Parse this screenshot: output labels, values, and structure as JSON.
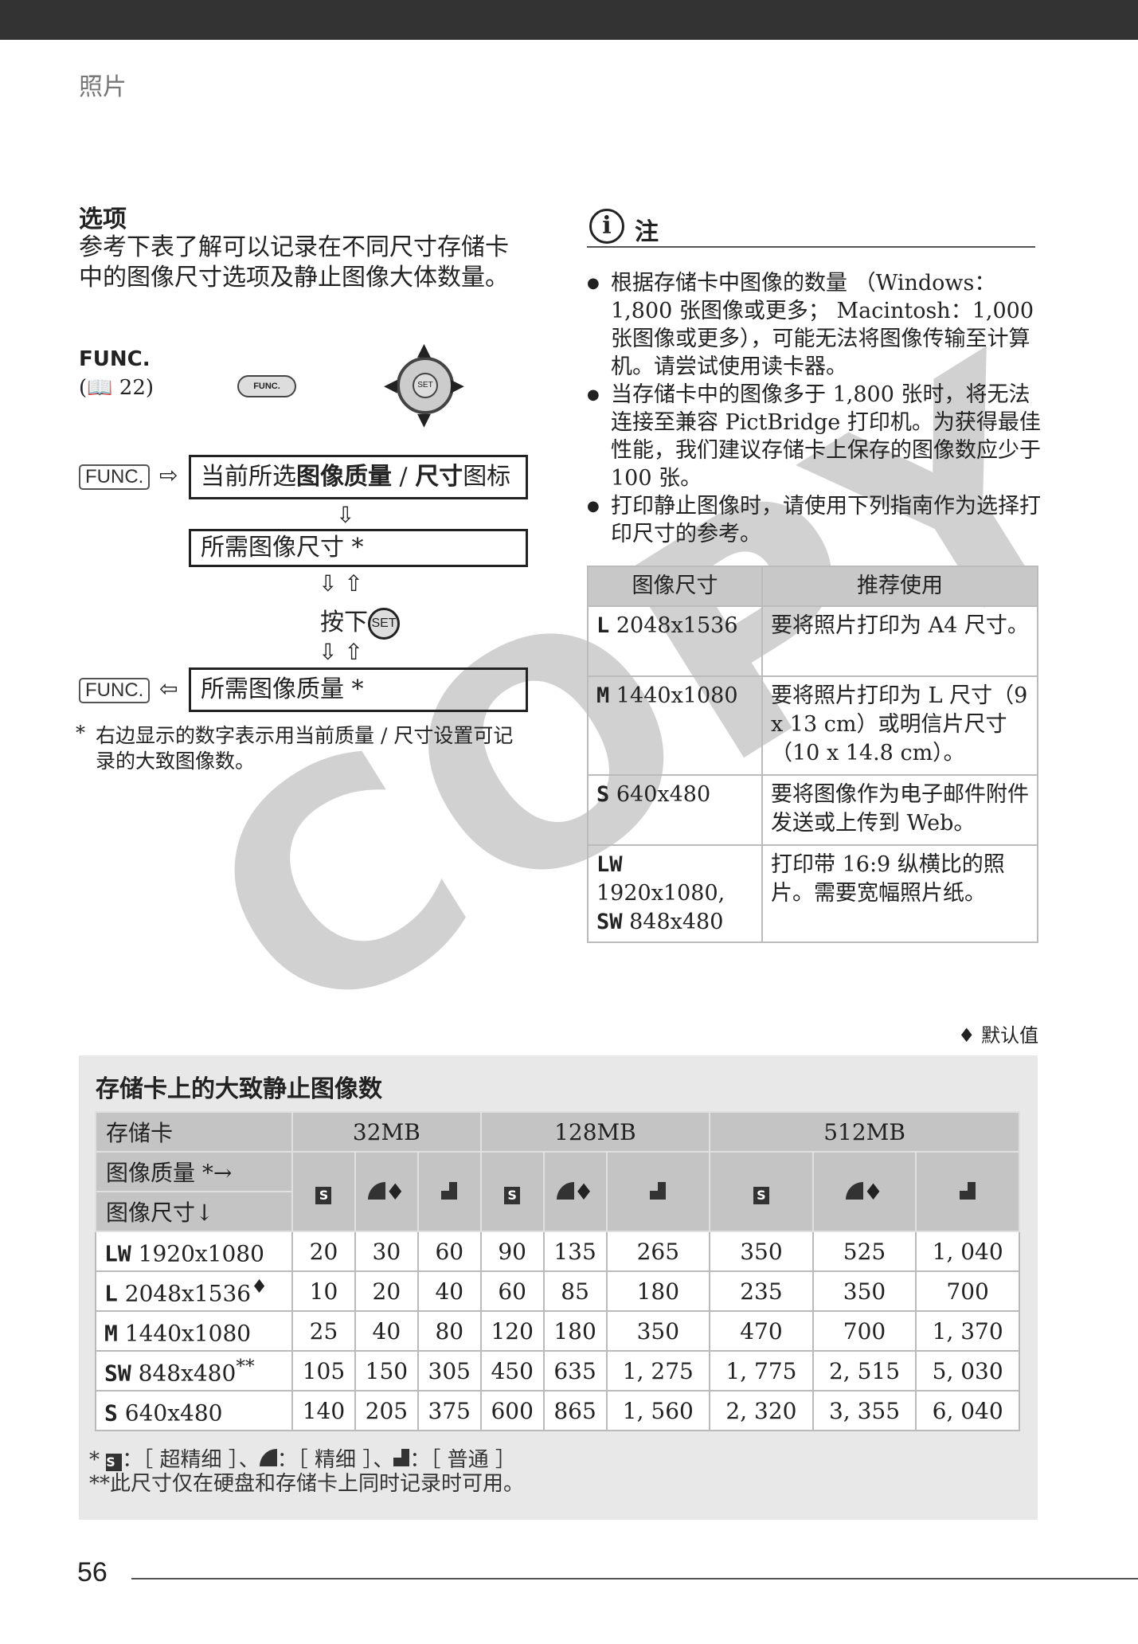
{
  "header": {
    "section": "照片"
  },
  "options": {
    "title": "选项",
    "intro": "参考下表了解可以记录在不同尺寸存储卡中的图像尺寸选项及静止图像大体数量。",
    "func_label": "FUNC.",
    "func_ref": "22",
    "func_button": "FUNC.",
    "set_label": "SET",
    "steps": {
      "func": "FUNC.",
      "step1_pre": "当前所选",
      "step1_bold1": "图像质量",
      "step1_sep": " / ",
      "step1_bold2": "尺寸",
      "step1_post": "图标",
      "step2": "所需图像尺寸 *",
      "press": "按下",
      "step3": "所需图像质量 *"
    },
    "footnote": "右边显示的数字表示用当前质量 / 尺寸设置可记录的大致图像数。"
  },
  "notes": {
    "title": "注",
    "items": [
      "根据存储卡中图像的数量 （Windows：1,800 张图像或更多； Macintosh：1,000 张图像或更多），可能无法将图像传输至计算机。请尝试使用读卡器。",
      "当存储卡中的图像多于 1,800 张时，将无法连接至兼容 PictBridge 打印机。为获得最佳性能，我们建议存储卡上保存的图像数应少于 100 张。",
      "打印静止图像时，请使用下列指南作为选择打印尺寸的参考。"
    ],
    "table": {
      "headers": [
        "图像尺寸",
        "推荐使用"
      ],
      "rows": [
        {
          "code": "L",
          "size": "2048x1536",
          "use": "要将照片打印为 A4 尺寸。"
        },
        {
          "code": "M",
          "size": "1440x1080",
          "use": "要将照片打印为 L 尺寸（9 x 13 cm）或明信片尺寸 （10 x 14.8 cm）。"
        },
        {
          "code": "S",
          "size": "640x480",
          "use": "要将图像作为电子邮件附件发送或上传到 Web。"
        },
        {
          "code": "LW",
          "size": "1920x1080,",
          "code2": "SW",
          "size2": "848x480",
          "use": "打印带 16:9 纵横比的照片。需要宽幅照片纸。"
        }
      ]
    }
  },
  "default_note": "默认值",
  "counts": {
    "title": "存储卡上的大致静止图像数",
    "card_label": "存储卡",
    "quality_label": "图像质量 *→",
    "size_label": "图像尺寸↓",
    "cards": [
      "32MB",
      "128MB",
      "512MB"
    ],
    "rows": [
      {
        "code": "LW",
        "size": "1920x1080",
        "mark": "",
        "values": [
          "20",
          "30",
          "60",
          "90",
          "135",
          "265",
          "350",
          "525",
          "1, 040"
        ]
      },
      {
        "code": "L",
        "size": "2048x1536",
        "mark": "♦",
        "values": [
          "10",
          "20",
          "40",
          "60",
          "85",
          "180",
          "235",
          "350",
          "700"
        ]
      },
      {
        "code": "M",
        "size": "1440x1080",
        "mark": "",
        "values": [
          "25",
          "40",
          "80",
          "120",
          "180",
          "350",
          "470",
          "700",
          "1, 370"
        ]
      },
      {
        "code": "SW",
        "size": "848x480",
        "mark": "**",
        "values": [
          "105",
          "150",
          "305",
          "450",
          "635",
          "1, 275",
          "1, 775",
          "2, 515",
          "5, 030"
        ]
      },
      {
        "code": "S",
        "size": "640x480",
        "mark": "",
        "values": [
          "140",
          "205",
          "375",
          "600",
          "865",
          "1, 560",
          "2, 320",
          "3, 355",
          "6, 040"
        ]
      }
    ],
    "legend": {
      "superfine": "：［ 超精细 ］、",
      "fine": "：［ 精细 ］、",
      "normal": "：［ 普通 ］"
    },
    "footnote2": "**此尺寸仅在硬盘和存储卡上同时记录时可用。"
  },
  "watermark": "COPY",
  "page_number": "56"
}
